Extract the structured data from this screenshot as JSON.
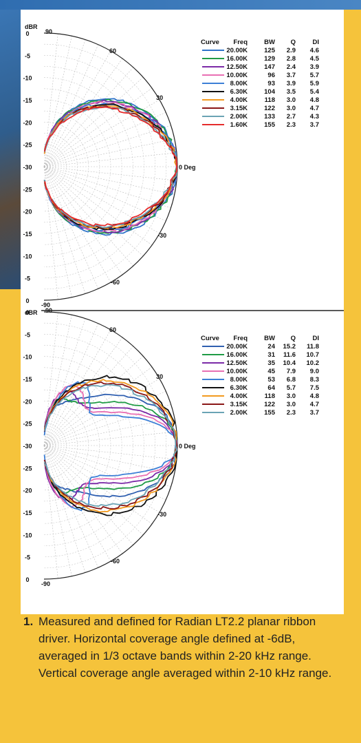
{
  "chart_data": [
    {
      "type": "polar",
      "y_axis_label": "dBR",
      "radial_ticks": [
        "0",
        "-5",
        "-10",
        "-15",
        "-20",
        "-25",
        "-30",
        "-25",
        "-20",
        "-15",
        "-10",
        "-5",
        "0"
      ],
      "angle_labels": [
        "90",
        "60",
        "30",
        "0 Deg",
        "-30",
        "-60",
        "-90"
      ],
      "legend_headers": [
        "Curve",
        "Freq",
        "BW",
        "Q",
        "DI"
      ],
      "series": [
        {
          "freq": "20.00K",
          "bw": "125",
          "q": "2.9",
          "di": "4.6",
          "color": "#2f73c9"
        },
        {
          "freq": "16.00K",
          "bw": "129",
          "q": "2.8",
          "di": "4.5",
          "color": "#1f9b45"
        },
        {
          "freq": "12.50K",
          "bw": "147",
          "q": "2.4",
          "di": "3.9",
          "color": "#7b2aa7"
        },
        {
          "freq": "10.00K",
          "bw": "96",
          "q": "3.7",
          "di": "5.7",
          "color": "#e86fb3"
        },
        {
          "freq": "8.00K",
          "bw": "93",
          "q": "3.9",
          "di": "5.9",
          "color": "#3c7fd6"
        },
        {
          "freq": "6.30K",
          "bw": "104",
          "q": "3.5",
          "di": "5.4",
          "color": "#111111"
        },
        {
          "freq": "4.00K",
          "bw": "118",
          "q": "3.0",
          "di": "4.8",
          "color": "#f39a1e"
        },
        {
          "freq": "3.15K",
          "bw": "122",
          "q": "3.0",
          "di": "4.7",
          "color": "#8a1616"
        },
        {
          "freq": "2.00K",
          "bw": "133",
          "q": "2.7",
          "di": "4.3",
          "color": "#6aa3b4"
        },
        {
          "freq": "1.60K",
          "bw": "155",
          "q": "2.3",
          "di": "3.7",
          "color": "#e52c2c"
        }
      ]
    },
    {
      "type": "polar",
      "y_axis_label": "dBR",
      "radial_ticks": [
        "0",
        "-5",
        "-10",
        "-15",
        "-20",
        "-25",
        "-30",
        "-25",
        "-20",
        "-15",
        "-10",
        "-5",
        "0"
      ],
      "angle_labels": [
        "90",
        "60",
        "30",
        "0 Deg",
        "-30",
        "-60",
        "-90"
      ],
      "legend_headers": [
        "Curve",
        "Freq",
        "BW",
        "Q",
        "DI"
      ],
      "series": [
        {
          "freq": "20.00K",
          "bw": "24",
          "q": "15.2",
          "di": "11.8",
          "color": "#2f5fb0"
        },
        {
          "freq": "16.00K",
          "bw": "31",
          "q": "11.6",
          "di": "10.7",
          "color": "#1f9b45"
        },
        {
          "freq": "12.50K",
          "bw": "35",
          "q": "10.4",
          "di": "10.2",
          "color": "#7b2aa7"
        },
        {
          "freq": "10.00K",
          "bw": "45",
          "q": "7.9",
          "di": "9.0",
          "color": "#e86fb3"
        },
        {
          "freq": "8.00K",
          "bw": "53",
          "q": "6.8",
          "di": "8.3",
          "color": "#3c7fd6"
        },
        {
          "freq": "6.30K",
          "bw": "64",
          "q": "5.7",
          "di": "7.5",
          "color": "#111111"
        },
        {
          "freq": "4.00K",
          "bw": "118",
          "q": "3.0",
          "di": "4.8",
          "color": "#f39a1e"
        },
        {
          "freq": "3.15K",
          "bw": "122",
          "q": "3.0",
          "di": "4.7",
          "color": "#8a1616"
        },
        {
          "freq": "2.00K",
          "bw": "155",
          "q": "2.3",
          "di": "3.7",
          "color": "#6aa3b4"
        }
      ]
    }
  ],
  "caption": {
    "number": "1.",
    "text": "Measured and defined for Radian LT2.2 planar ribbon driver. Horizontal coverage angle defined at -6dB, averaged in 1/3 octave bands within 2-20 kHz range. Vertical coverage angle averaged within 2-10 kHz range."
  },
  "colors": {
    "background": "#f5c33b",
    "panel": "#ffffff",
    "text": "#222222"
  }
}
